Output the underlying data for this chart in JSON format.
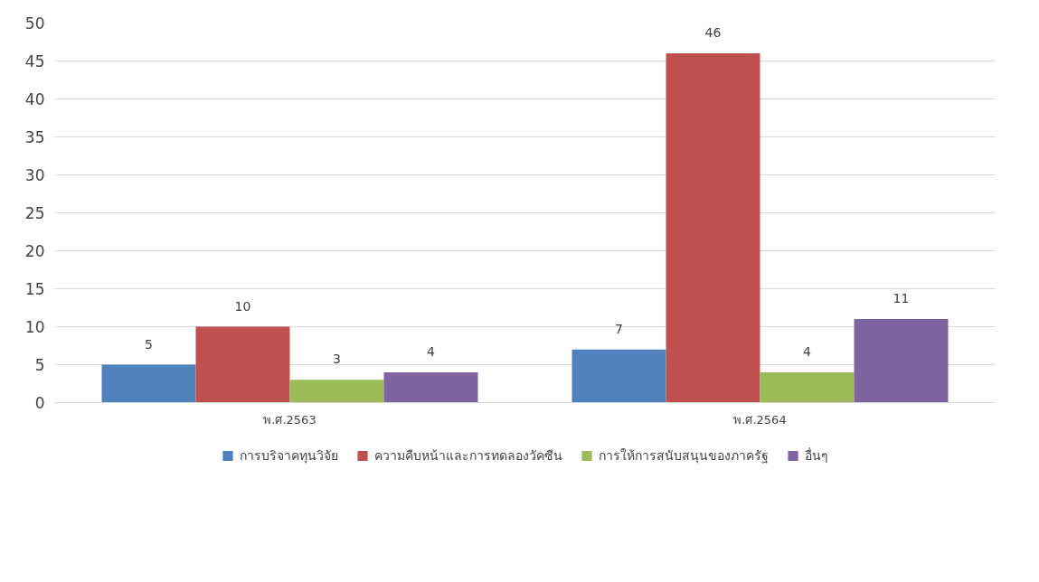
{
  "chart_data": {
    "type": "bar",
    "categories": [
      "พ.ศ.2563",
      "พ.ศ.2564"
    ],
    "series": [
      {
        "name": "การบริจาคทุนวิจัย",
        "color": "#4f81bd",
        "values": [
          5,
          7
        ]
      },
      {
        "name": "ความคืบหน้าและการทดลองวัคซีน",
        "color": "#c0504d",
        "values": [
          10,
          46
        ]
      },
      {
        "name": "การให้การสนับสนุนของภาครัฐ",
        "color": "#9bbb59",
        "values": [
          3,
          4
        ]
      },
      {
        "name": "อื่นๆ",
        "color": "#8064a2",
        "values": [
          4,
          11
        ]
      }
    ],
    "ylim": [
      0,
      50
    ],
    "yticks": [
      0,
      5,
      10,
      15,
      20,
      25,
      30,
      35,
      40,
      45,
      50
    ],
    "grid": "y",
    "legend": "bottom",
    "data_labels": true
  }
}
